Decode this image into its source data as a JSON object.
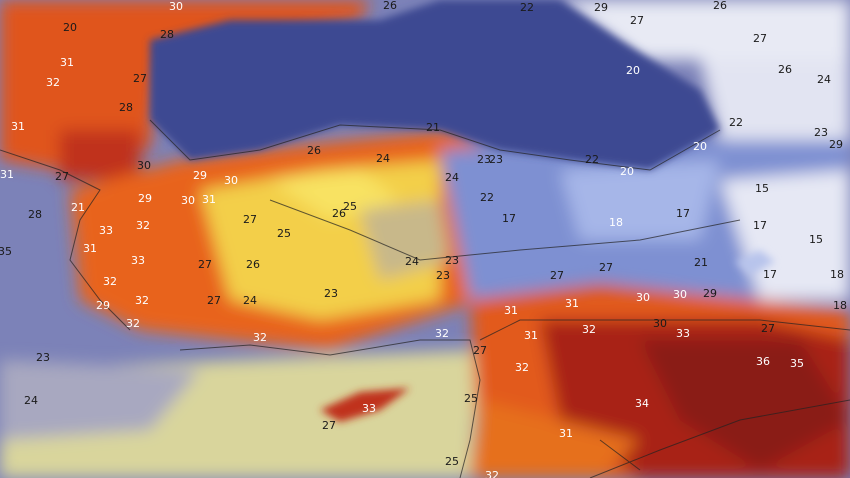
{
  "map": {
    "type": "temperature-map",
    "colors": {
      "black_sea": "#3c4892",
      "west_sea": "#7c82b8",
      "mediterranean": "#d9d59c",
      "hot_land": "#e2501c",
      "very_hot": "#8e1a10",
      "mild_land": "#f4d24a",
      "cool_land": "#7d8ed0",
      "cold_land": "#e6e8f4"
    },
    "labels": [
      "30",
      "26",
      "22",
      "29",
      "27",
      "26",
      "27",
      "26",
      "24",
      "20",
      "28",
      "31",
      "32",
      "27",
      "28",
      "31",
      "20",
      "22",
      "23",
      "29",
      "21",
      "26",
      "24",
      "23",
      "23",
      "22",
      "20",
      "20",
      "30",
      "29",
      "30",
      "27",
      "31",
      "24",
      "22",
      "15",
      "29",
      "30",
      "31",
      "25",
      "26",
      "17",
      "17",
      "18",
      "27",
      "21",
      "28",
      "32",
      "33",
      "25",
      "17",
      "15",
      "31",
      "33",
      "27",
      "26",
      "24",
      "23",
      "23",
      "21",
      "27",
      "27",
      "17",
      "18",
      "32",
      "23",
      "27",
      "24",
      "32",
      "29",
      "31",
      "31",
      "30",
      "30",
      "29",
      "18",
      "32",
      "32",
      "32",
      "31",
      "32",
      "30",
      "33",
      "27",
      "27",
      "32",
      "36",
      "35",
      "23",
      "24",
      "33",
      "27",
      "25",
      "34",
      "31",
      "25",
      "32",
      "35"
    ]
  }
}
